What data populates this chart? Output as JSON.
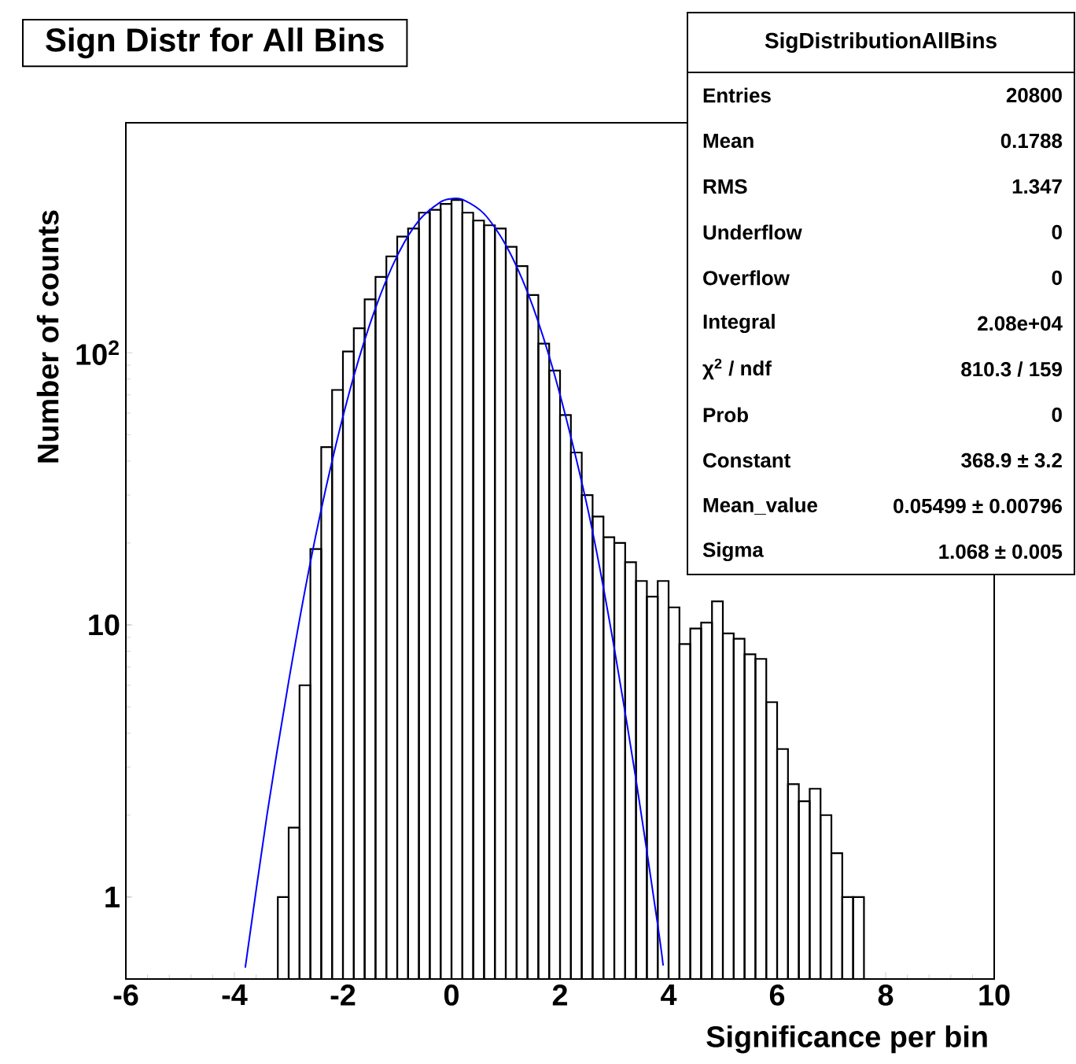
{
  "chart_data": {
    "type": "histogram",
    "title": "Sign Distr for All Bins",
    "xlabel": "Significance per bin",
    "ylabel": "Number of counts",
    "log": "y",
    "xlim": [
      -6,
      10
    ],
    "xticks": [
      -6,
      -4,
      -2,
      0,
      2,
      4,
      6,
      8,
      10
    ],
    "ylim": [
      0.5,
      700
    ],
    "yticks": [
      1,
      10,
      {
        "value": 100,
        "label": "10$^{2}$"
      }
    ],
    "series": [
      {
        "color": "#000000",
        "bins": [
          -3.2,
          -3.0,
          -2.8,
          -2.6,
          -2.4,
          -2.2,
          -2.0,
          -1.8,
          -1.6,
          -1.4,
          -1.2,
          -1.0,
          -0.8,
          -0.6,
          -0.4,
          -0.2,
          0.0,
          0.2,
          0.4,
          0.6,
          0.8,
          1.0,
          1.2,
          1.4,
          1.6,
          1.8,
          2.0,
          2.2,
          2.4,
          2.6,
          2.8,
          3.0,
          3.2,
          3.4,
          3.6,
          3.8,
          4.0,
          4.2,
          4.4,
          4.6,
          4.8,
          5.0,
          5.2,
          5.4,
          5.6,
          5.8,
          6.0,
          6.2,
          6.4,
          6.6,
          6.8,
          7.0,
          7.2,
          7.4,
          7.6
        ],
        "values": [
          1,
          1.8,
          6,
          19,
          45,
          73,
          101,
          123,
          157,
          190,
          226,
          267,
          286,
          327,
          335,
          352,
          364,
          327,
          306,
          294,
          286,
          245,
          208,
          163,
          108,
          86,
          59,
          43,
          30,
          25,
          21,
          20,
          17,
          14.5,
          12.7,
          14.5,
          11.6,
          8.5,
          9.7,
          10.2,
          12.2,
          9.3,
          8.9,
          7.8,
          7.5,
          5.2,
          3.5,
          2.6,
          2.25,
          2.5,
          2.0,
          1.45,
          1.0,
          1.0
        ]
      },
      {
        "type": "line",
        "color": "#0000ff",
        "x": [
          -3.8,
          -3.4,
          -3.0,
          -2.6,
          -2.2,
          -1.8,
          -1.4,
          -1.0,
          -0.6,
          -0.2,
          0.0,
          0.2,
          0.6,
          1.0,
          1.4,
          1.8,
          2.2,
          2.6,
          3.0,
          3.4,
          3.8,
          3.9
        ],
        "values": [
          0.55,
          2.0,
          6.2,
          17,
          40,
          82,
          146,
          227,
          306,
          358,
          368,
          366,
          324,
          249,
          167,
          97,
          49,
          22,
          8.2,
          2.7,
          0.79,
          0.56
        ]
      }
    ],
    "annotations": [
      "SigDistributionAllBins",
      "Entries",
      "20800",
      "Mean",
      "0.1788",
      "RMS",
      "1.347",
      "Underflow",
      "0",
      "Overflow",
      "0",
      "Integral",
      "2.08e+04",
      "χ$^{2}$ / ndf",
      "810.3 / 159",
      "Prob",
      "0",
      "Constant",
      "368.9 ± 3.2",
      "Mean_value",
      "0.05499 ± 0.00796",
      "Sigma",
      "1.068 ± 0.005"
    ]
  }
}
